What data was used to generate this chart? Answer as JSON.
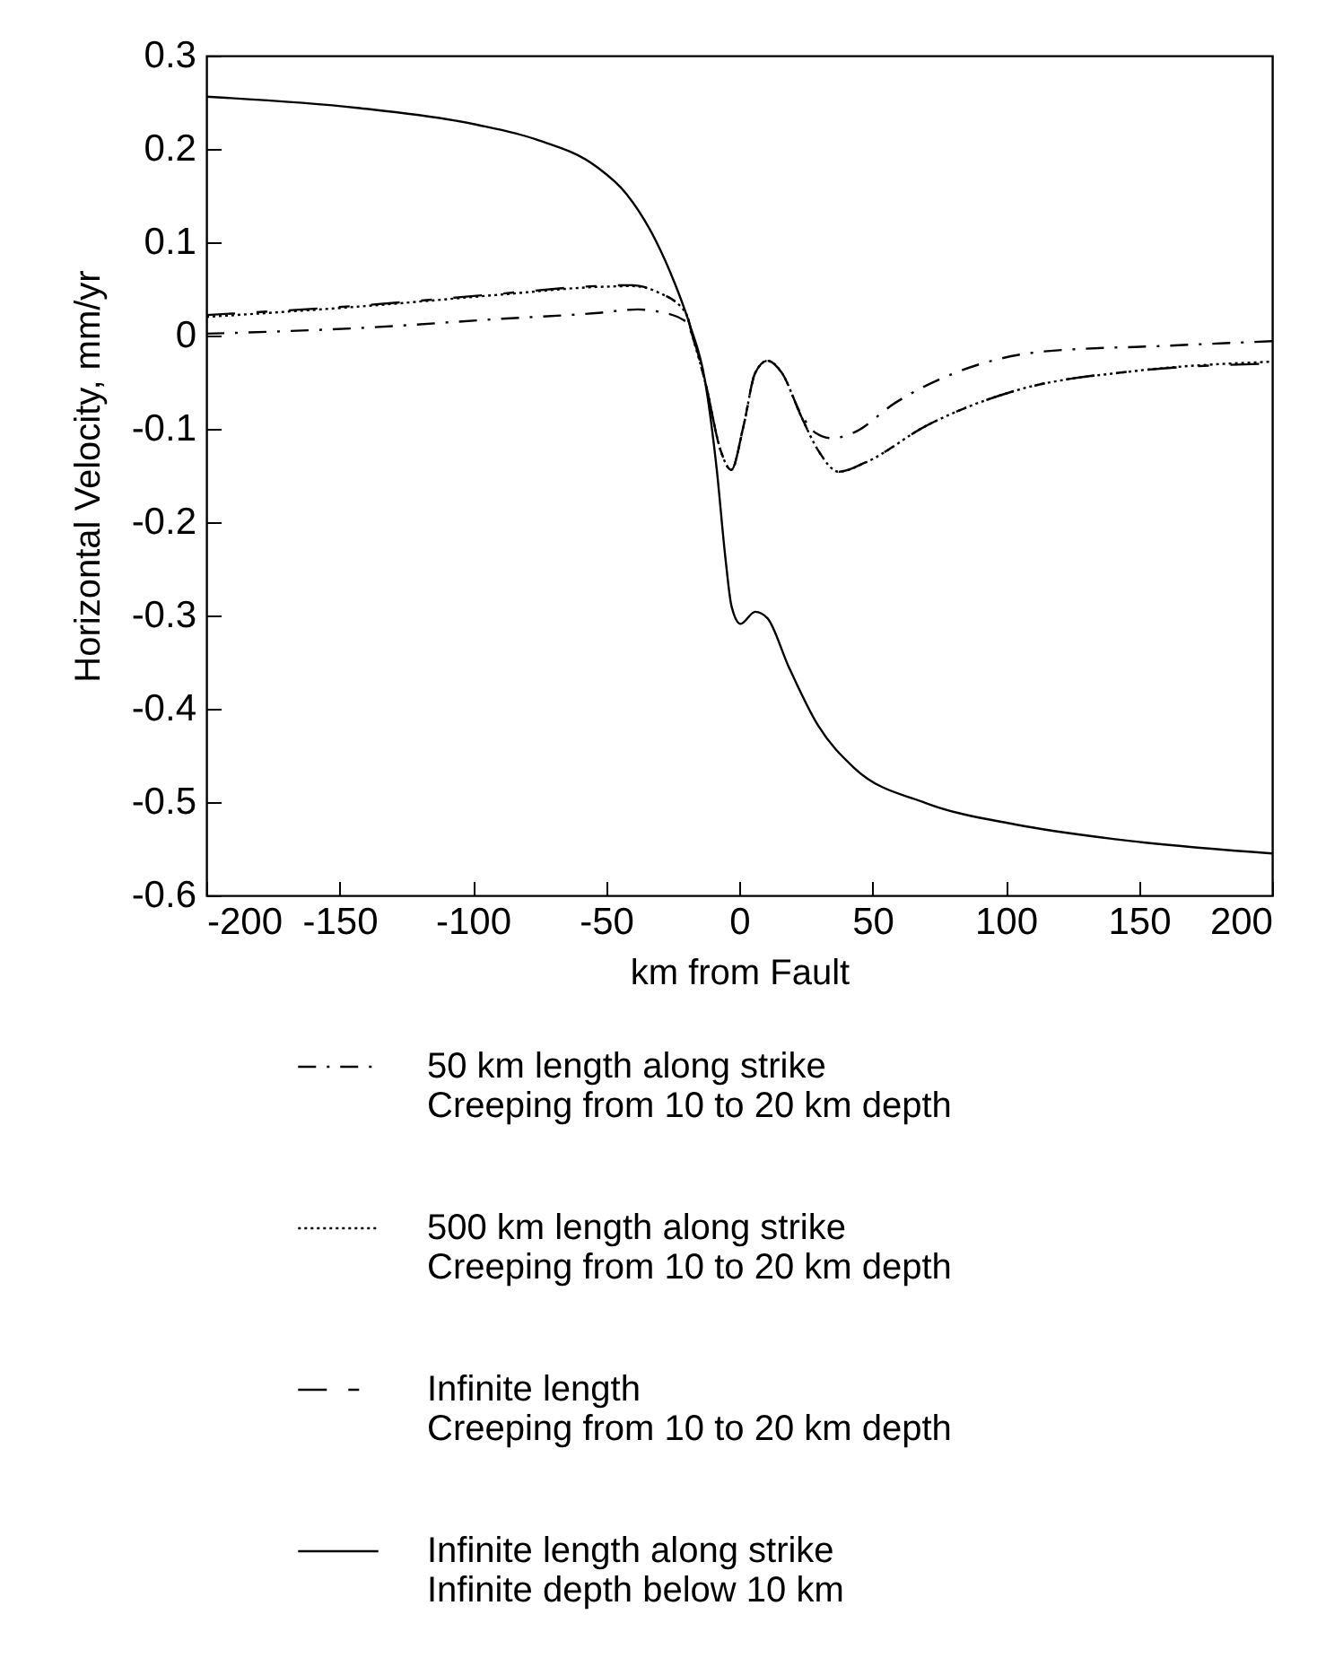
{
  "chart_data": {
    "type": "line",
    "xlabel": "km from Fault",
    "ylabel": "Horizontal Velocity, mm/yr",
    "xlim": [
      -200,
      200
    ],
    "xticks": [
      -200,
      -150,
      -100,
      -50,
      0,
      50,
      100,
      150,
      200
    ],
    "ylim": [
      -0.6,
      0.3
    ],
    "yticks": [
      -0.6,
      -0.5,
      -0.4,
      -0.3,
      -0.2,
      -0.1,
      0,
      0.1,
      0.2,
      0.3
    ],
    "grid": false,
    "legend": "bottom",
    "marker": "none",
    "series": [
      {
        "name": "50 km length along strike\nCreeping from 10 to 20 km depth",
        "color": "#000000",
        "line_style": "dashdot",
        "x": [
          -200,
          -143,
          -89,
          -54,
          -38,
          -31,
          -20,
          -17.5,
          -12.5,
          -7,
          -3,
          1.6,
          6,
          10.6,
          16,
          23,
          28.5,
          35,
          43,
          58.6,
          81,
          114.6,
          160,
          200
        ],
        "values": [
          0.002,
          0.008,
          0.018,
          0.024,
          0.028,
          0.026,
          0.015,
          -0.001,
          -0.053,
          -0.123,
          -0.144,
          -0.097,
          -0.04,
          -0.027,
          -0.04,
          -0.083,
          -0.104,
          -0.11,
          -0.104,
          -0.072,
          -0.04,
          -0.017,
          -0.011,
          -0.006
        ]
      },
      {
        "name": "500 km length along strike\nCreeping from 10 to 20 km depth",
        "color": "#000000",
        "line_style": "dotted",
        "x": [
          -200,
          -143,
          -89,
          -54,
          -40,
          -31,
          -20,
          -17.5,
          -12.5,
          -7,
          -3,
          1.6,
          6,
          10.6,
          16,
          23,
          29.6,
          37.4,
          47.4,
          70,
          103.7,
          148.6,
          200
        ],
        "values": [
          0.02,
          0.031,
          0.044,
          0.052,
          0.053,
          0.047,
          0.024,
          -0.001,
          -0.053,
          -0.123,
          -0.144,
          -0.097,
          -0.04,
          -0.027,
          -0.04,
          -0.085,
          -0.123,
          -0.146,
          -0.136,
          -0.097,
          -0.059,
          -0.038,
          -0.028
        ]
      },
      {
        "name": "Infinite length\nCreeping from 10 to 20 km depth",
        "color": "#000000",
        "line_style": "dashed",
        "x": [
          -200,
          -143,
          -89,
          -54,
          -40,
          -31,
          -20,
          -17.5,
          -12.5,
          -7,
          -3,
          1.6,
          6,
          10.6,
          16,
          23,
          29.6,
          37.4,
          47.4,
          70,
          103.7,
          148.6,
          200
        ],
        "values": [
          0.022,
          0.032,
          0.045,
          0.053,
          0.054,
          0.047,
          0.024,
          -0.001,
          -0.053,
          -0.123,
          -0.144,
          -0.097,
          -0.04,
          -0.027,
          -0.04,
          -0.085,
          -0.123,
          -0.146,
          -0.136,
          -0.097,
          -0.059,
          -0.038,
          -0.03
        ]
      },
      {
        "name": "Infinite length along strike\nInfinite depth below 10 km",
        "color": "#000000",
        "line_style": "solid",
        "x": [
          -200,
          -143.4,
          -98.5,
          -76,
          -53.6,
          -42.4,
          -31.2,
          -24.2,
          -18.6,
          -13,
          -8.5,
          -5.2,
          -2.9,
          0.5,
          6,
          10.6,
          18.4,
          29.6,
          43,
          70,
          103.7,
          141.9,
          200
        ],
        "values": [
          0.256,
          0.244,
          0.226,
          0.21,
          0.181,
          0.152,
          0.101,
          0.056,
          0.012,
          -0.046,
          -0.142,
          -0.238,
          -0.29,
          -0.309,
          -0.296,
          -0.303,
          -0.354,
          -0.418,
          -0.463,
          -0.501,
          -0.524,
          -0.54,
          -0.555
        ]
      }
    ]
  }
}
